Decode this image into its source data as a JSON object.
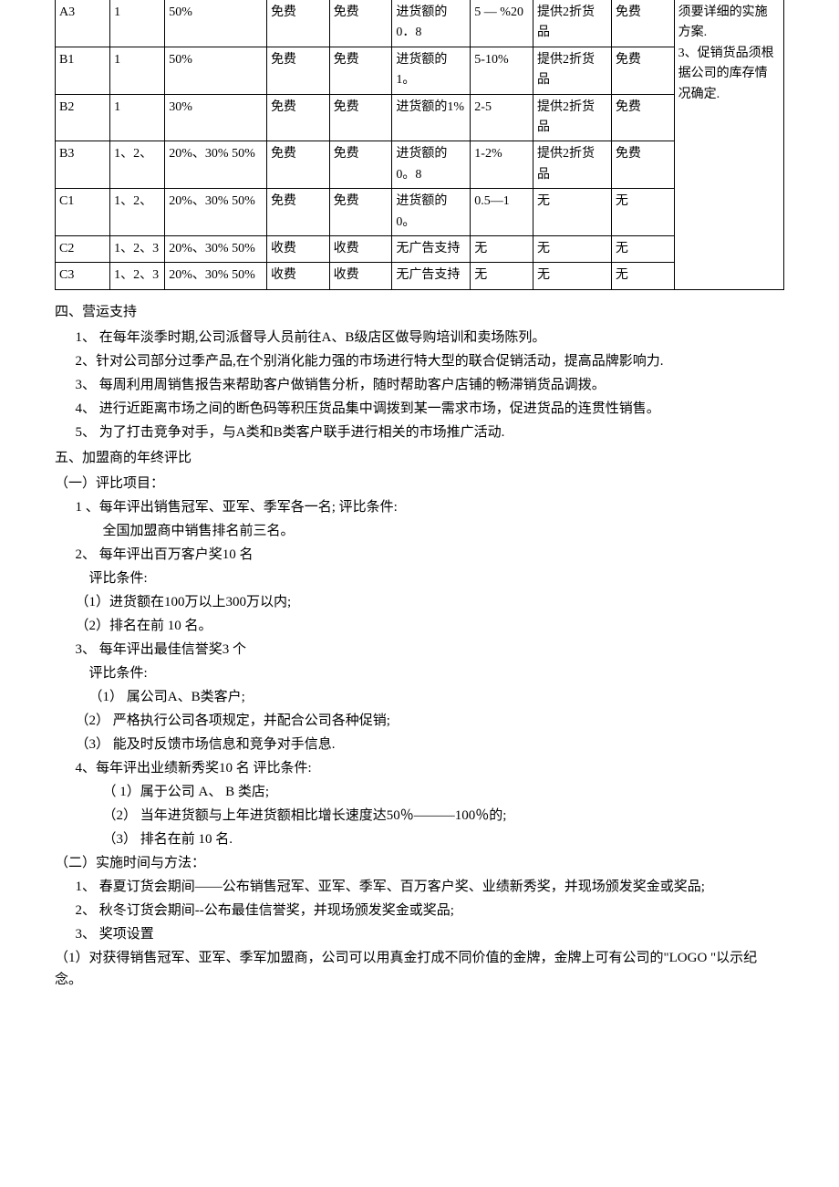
{
  "table": {
    "rows": [
      [
        "A3",
        "1",
        "50%",
        "免费",
        "免费",
        "进货额的0．8",
        "5 — %20",
        "提供2折货品",
        "免费"
      ],
      [
        "B1",
        "1",
        "50%",
        "免费",
        "免费",
        "进货额的 1。",
        "5-10%",
        "提供2折货品",
        "免费"
      ],
      [
        "B2",
        "1",
        "30%",
        "免费",
        "免费",
        "进货额的1%",
        "2-5",
        "提供2折货品",
        "免费"
      ],
      [
        "B3",
        "1、2、",
        "20%、30% 50%",
        "免费",
        "免费",
        "进货额的0。8",
        "1-2%",
        "提供2折货品",
        "免费"
      ],
      [
        "C1",
        "1、2、",
        "20%、30% 50%",
        "免费",
        "免费",
        "进货额的 0。",
        "0.5—1",
        "无",
        "无"
      ],
      [
        "C2",
        "1、2、3",
        "20%、30% 50%",
        "收费",
        "收费",
        "无广告支持",
        "无",
        "无",
        "无"
      ],
      [
        "C3",
        "1、2、3",
        "20%、30% 50%",
        "收费",
        "收费",
        "无广告支持",
        "无",
        "无",
        "无"
      ]
    ],
    "side_note": "须要详细的实施方案.\n3、促销货品须根据公司的库存情况确定."
  },
  "sections": {
    "s4_title": "四、营运支持",
    "s4_items": [
      "1、 在每年淡季时期,公司派督导人员前往A、B级店区做导购培训和卖场陈列。",
      "2、针对公司部分过季产品,在个别消化能力强的市场进行特大型的联合促销活动，提高品牌影响力.",
      "3、 每周利用周销售报告来帮助客户做销售分析，随时帮助客户店铺的畅滞销货品调拨。",
      "4、 进行近距离市场之间的断色码等积压货品集中调拨到某一需求市场，促进货品的连贯性销售。",
      "5、 为了打击竞争对手，与A类和B类客户联手进行相关的市场推广活动."
    ],
    "s5_title": "五、加盟商的年终评比",
    "s5_sub1": "（一）评比项目：",
    "s5_1_a": "1 、每年评出销售冠军、亚军、季军各一名; 评比条件:",
    "s5_1_b": "全国加盟商中销售排名前三名。",
    "s5_2_a": "2、 每年评出百万客户奖10 名",
    "s5_2_b": "评比条件:",
    "s5_2_c": "（1）进货额在100万以上300万以内;",
    "s5_2_d": "（2）排名在前  10 名。",
    "s5_3_a": "3、 每年评出最佳信誉奖3 个",
    "s5_3_b": "评比条件:",
    "s5_3_c": "（1）  属公司A、B类客户;",
    "s5_3_d": "（2）    严格执行公司各项规定，并配合公司各种促销;",
    "s5_3_e": "（3）    能及时反馈市场信息和竞争对手信息.",
    "s5_4_a": "4、每年评出业绩新秀奖10 名  评比条件:",
    "s5_4_b": "（ 1）属于公司  A、  B 类店;",
    "s5_4_c": "（2）  当年进货额与上年进货额相比增长速度达50％———100％的;",
    "s5_4_d": "（3） 排名在前  10 名.",
    "s5_sub2": "（二）实施时间与方法：",
    "s5_m1": "1、 春夏订货会期间——公布销售冠军、亚军、季军、百万客户奖、业绩新秀奖，并现场颁发奖金或奖品;",
    "s5_m2": "2、 秋冬订货会期间--公布最佳信誉奖，并现场颁发奖金或奖品;",
    "s5_m3": "3、 奖项设置",
    "s5_m3_1": "（1）对获得销售冠军、亚军、季军加盟商，公司可以用真金打成不同价值的金牌，金牌上可有公司的\"LOGO \"以示纪念。"
  }
}
